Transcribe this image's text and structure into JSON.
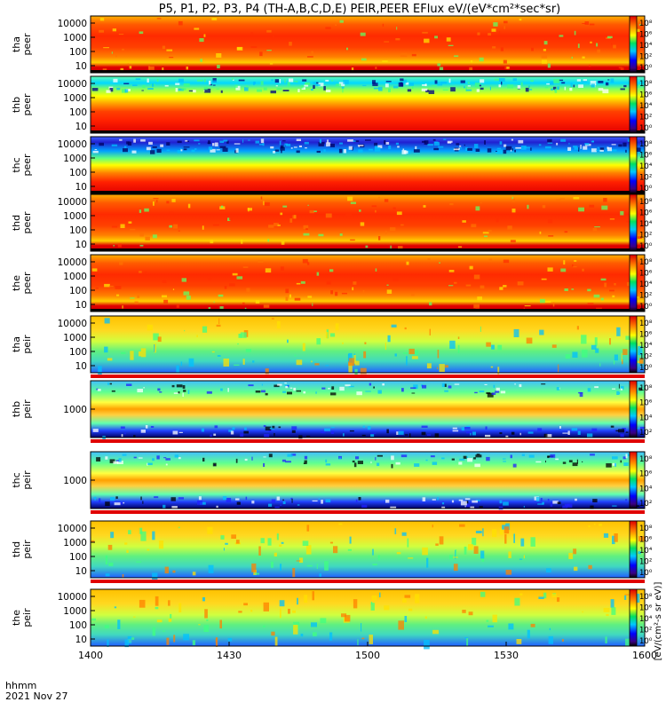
{
  "chart_data": {
    "type": "heatmap",
    "title": "P5, P1, P2, P3, P4 (TH-A,B,C,D,E) PEIR,PEER EFlux eV/(eV*cm²*sec*sr)",
    "x_time_label": "hhmm",
    "x_date_label": "2021 Nov 27",
    "x_range_hhmm": [
      1400,
      1600
    ],
    "x_ticks": [
      "1400",
      "1430",
      "1500",
      "1530",
      "1600"
    ],
    "colorbar_label": "[eV/(cm²-s sr eV)]",
    "colorbar_range_log10": [
      0,
      8
    ],
    "panels": [
      {
        "probe": "tha",
        "label1": "tha",
        "label2": "peer",
        "yticks": [
          "10000",
          "1000",
          "100",
          "10"
        ],
        "cb_ticks": [
          "10⁸",
          "10⁶",
          "10⁴",
          "10²",
          "10⁰"
        ],
        "pattern": "active"
      },
      {
        "probe": "thb",
        "label1": "thb",
        "label2": "peer",
        "yticks": [
          "10000",
          "1000",
          "100",
          "10"
        ],
        "cb_ticks": [
          "10⁸",
          "10⁶",
          "10⁴",
          "10²",
          "10⁰"
        ],
        "pattern": "banded"
      },
      {
        "probe": "thc",
        "label1": "thc",
        "label2": "peer",
        "yticks": [
          "10000",
          "1000",
          "100",
          "10"
        ],
        "cb_ticks": [
          "10⁸",
          "10⁶",
          "10⁴",
          "10²",
          "10⁰"
        ],
        "pattern": "banded_blue"
      },
      {
        "probe": "thd",
        "label1": "thd",
        "label2": "peer",
        "yticks": [
          "10000",
          "1000",
          "100",
          "10"
        ],
        "cb_ticks": [
          "10⁸",
          "10⁶",
          "10⁴",
          "10²",
          "10⁰"
        ],
        "pattern": "active"
      },
      {
        "probe": "the",
        "label1": "the",
        "label2": "peer",
        "yticks": [
          "10000",
          "1000",
          "100",
          "10"
        ],
        "cb_ticks": [
          "10⁸",
          "10⁶",
          "10⁴",
          "10²",
          "10⁰"
        ],
        "pattern": "active"
      },
      {
        "probe": "tha",
        "label1": "tha",
        "label2": "peir",
        "yticks": [
          "10000",
          "1000",
          "100",
          "10"
        ],
        "cb_ticks": [
          "10⁸",
          "10⁶",
          "10⁴",
          "10²",
          "10⁰"
        ],
        "pattern": "ion"
      },
      {
        "probe": "thb",
        "label1": "thb",
        "label2": "peir",
        "yticks": [
          "1000"
        ],
        "cb_ticks": [
          "10⁸",
          "10⁶",
          "10⁴",
          "10²"
        ],
        "pattern": "ion_banded"
      },
      {
        "probe": "thc",
        "label1": "thc",
        "label2": "peir",
        "yticks": [
          "1000"
        ],
        "cb_ticks": [
          "10⁸",
          "10⁶",
          "10⁴",
          "10²"
        ],
        "pattern": "ion_banded"
      },
      {
        "probe": "thd",
        "label1": "thd",
        "label2": "peir",
        "yticks": [
          "10000",
          "1000",
          "100",
          "10"
        ],
        "cb_ticks": [
          "10⁸",
          "10⁶",
          "10⁴",
          "10²",
          "10⁰"
        ],
        "pattern": "ion"
      },
      {
        "probe": "the",
        "label1": "the",
        "label2": "peir",
        "yticks": [
          "10000",
          "1000",
          "100",
          "10"
        ],
        "cb_ticks": [
          "10⁸",
          "10⁶",
          "10⁴",
          "10²",
          "10⁰"
        ],
        "pattern": "ion"
      }
    ]
  }
}
